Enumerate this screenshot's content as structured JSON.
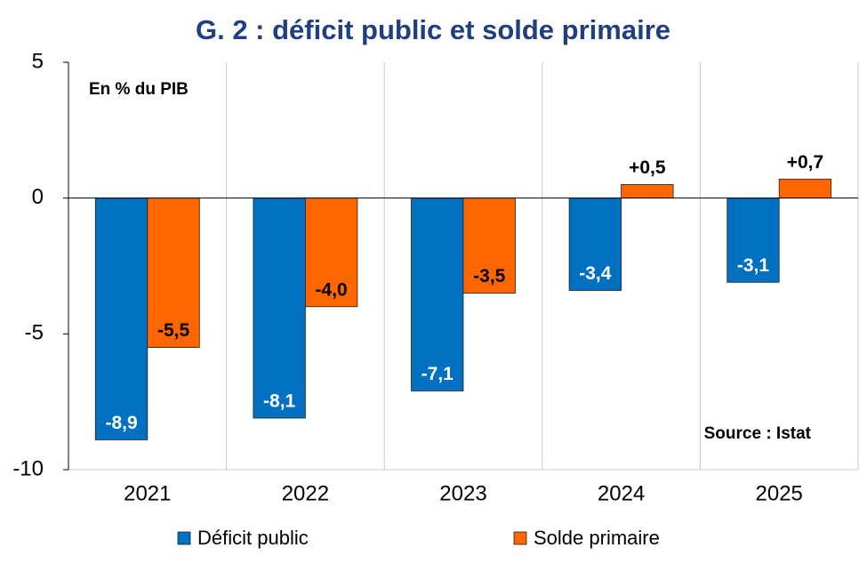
{
  "chart_data": {
    "type": "bar",
    "title": "G. 2 : déficit public et solde primaire",
    "annotations": [
      "En % du PIB",
      "Source : Istat"
    ],
    "categories": [
      "2021",
      "2022",
      "2023",
      "2024",
      "2025"
    ],
    "series": [
      {
        "name": "Déficit public",
        "color": "#0070c0",
        "values": [
          -8.9,
          -8.1,
          -7.1,
          -3.4,
          -3.1
        ],
        "value_labels": [
          "-8,9",
          "-8,1",
          "-7,1",
          "-3,4",
          "-3,1"
        ]
      },
      {
        "name": "Solde primaire",
        "color": "#ff6600",
        "values": [
          -5.5,
          -4.0,
          -3.5,
          0.5,
          0.7
        ],
        "value_labels": [
          "-5,5",
          "-4,0",
          "-3,5",
          "+0,5",
          "+0,7"
        ]
      }
    ],
    "ylim": [
      -10,
      5
    ],
    "yticks": [
      -10,
      -5,
      0,
      5
    ],
    "legend": "bottom"
  }
}
